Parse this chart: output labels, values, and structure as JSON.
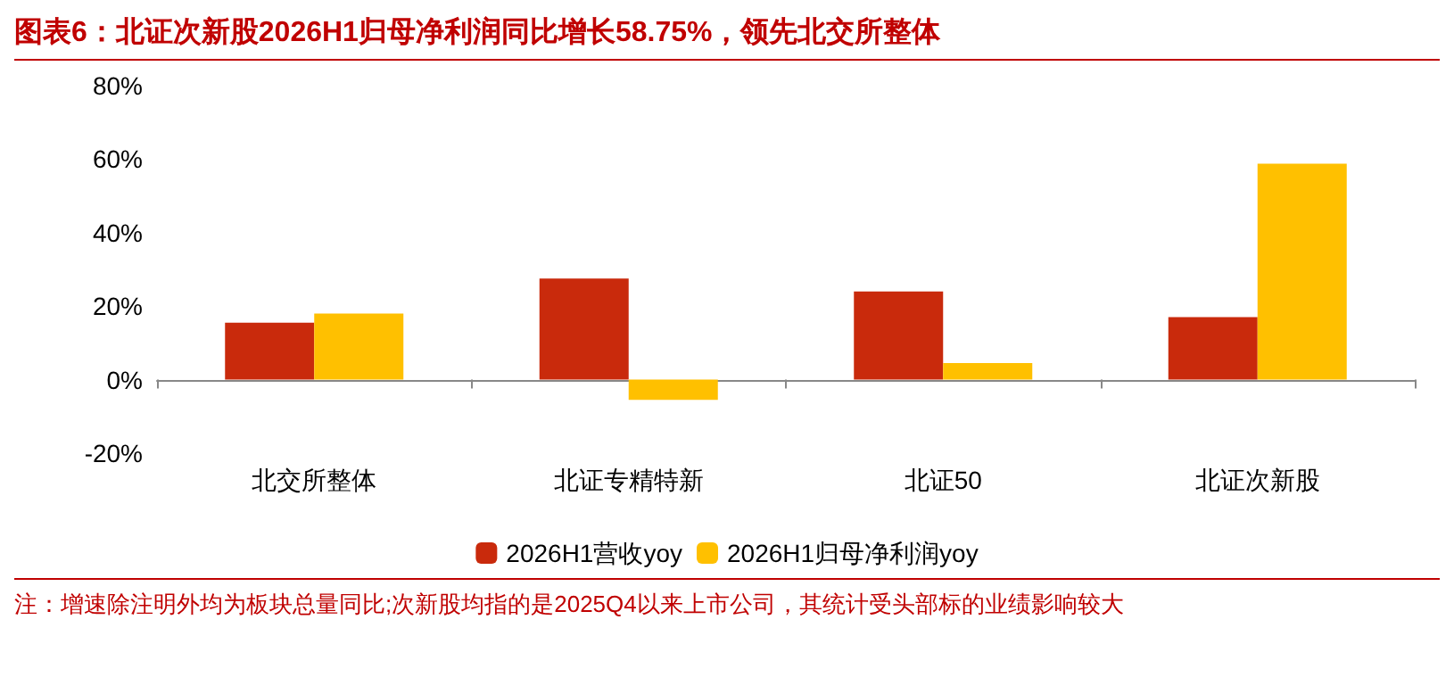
{
  "chart_data": {
    "type": "bar",
    "title": "图表6：北证次新股2026H1归母净利润同比增长58.75%，领先北交所整体",
    "categories": [
      "北交所整体",
      "北证专精特新",
      "北证50",
      "北证次新股"
    ],
    "series": [
      {
        "name": "2026H1营收yoy",
        "color": "#c92a0c",
        "values": [
          15.5,
          27.5,
          24,
          17
        ]
      },
      {
        "name": "2026H1归母净利润yoy",
        "color": "#ffc000",
        "values": [
          18,
          -5.5,
          4.5,
          58.75
        ]
      }
    ],
    "ylim": [
      -20,
      80
    ],
    "yticks": [
      {
        "value": -20,
        "label": "-20%"
      },
      {
        "value": 0,
        "label": "0%"
      },
      {
        "value": 20,
        "label": "20%"
      },
      {
        "value": 40,
        "label": "40%"
      },
      {
        "value": 60,
        "label": "60%"
      },
      {
        "value": 80,
        "label": "80%"
      }
    ],
    "legend": "bottom",
    "annotations": [
      "注：增速除注明外均为板块总量同比;次新股均指的是2025Q4以来上市公司，其统计受头部标的业绩影响较大"
    ]
  }
}
